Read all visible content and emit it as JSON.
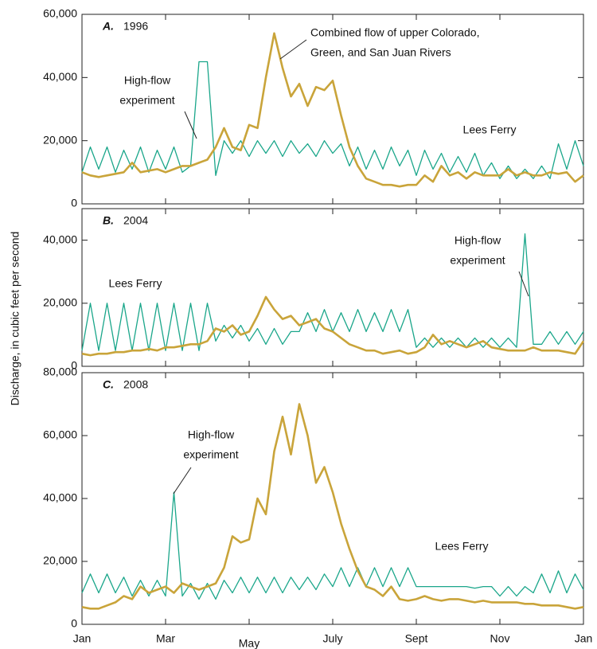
{
  "ylabel": "Discharge, in cubic feet per second",
  "chart_data": [
    {
      "type": "line",
      "panel": "A.",
      "title": "1996",
      "xlim": [
        0,
        12
      ],
      "xticks": [
        0,
        2,
        4,
        6,
        8,
        10,
        12
      ],
      "ylim": [
        0,
        60000
      ],
      "yticks": [
        0,
        {
          "value": 20000,
          "label": "20,000"
        },
        {
          "value": 40000,
          "label": "40,000"
        },
        {
          "value": 60000,
          "label": "60,000"
        }
      ],
      "annotations": [
        {
          "text": [
            "High-flow",
            "experiment"
          ]
        },
        {
          "text": [
            "Combined flow of upper Colorado,",
            "Green, and San Juan Rivers"
          ]
        },
        {
          "text": [
            "Lees Ferry"
          ]
        }
      ],
      "x": [
        0,
        0.2,
        0.4,
        0.6,
        0.8,
        1,
        1.2,
        1.4,
        1.6,
        1.8,
        2,
        2.2,
        2.4,
        2.6,
        2.8,
        3,
        3.2,
        3.4,
        3.6,
        3.8,
        4,
        4.2,
        4.4,
        4.6,
        4.8,
        5,
        5.2,
        5.4,
        5.6,
        5.8,
        6,
        6.2,
        6.4,
        6.6,
        6.8,
        7,
        7.2,
        7.4,
        7.6,
        7.8,
        8,
        8.2,
        8.4,
        8.6,
        8.8,
        9,
        9.2,
        9.4,
        9.6,
        9.8,
        10,
        10.2,
        10.4,
        10.6,
        10.8,
        11,
        11.2,
        11.4,
        11.6,
        11.8,
        12
      ],
      "series": [
        {
          "color": "#1aa68a",
          "values": [
            10000,
            18000,
            11000,
            18000,
            10000,
            17000,
            11000,
            18000,
            10000,
            17000,
            11000,
            18000,
            10000,
            12000,
            45000,
            45000,
            9000,
            20000,
            16000,
            20000,
            15000,
            20000,
            16000,
            20000,
            15000,
            20000,
            16000,
            19000,
            15000,
            20000,
            16000,
            19000,
            12000,
            18000,
            11000,
            17000,
            11000,
            18000,
            12000,
            17000,
            9000,
            17000,
            11000,
            16000,
            10000,
            15000,
            10000,
            16000,
            9000,
            13000,
            8000,
            12000,
            8000,
            11000,
            8000,
            12000,
            8000,
            19000,
            11000,
            20000,
            12000
          ]
        },
        {
          "color": "#c9a43a",
          "values": [
            10000,
            9000,
            8500,
            9000,
            9500,
            10000,
            13000,
            10000,
            10500,
            11000,
            10000,
            11000,
            12000,
            12000,
            13000,
            14000,
            18000,
            24000,
            18000,
            17000,
            25000,
            24000,
            40000,
            54000,
            43000,
            34000,
            38000,
            31000,
            37000,
            36000,
            39000,
            28000,
            18000,
            12000,
            8000,
            7000,
            6000,
            6000,
            5500,
            6000,
            6000,
            9000,
            7000,
            12000,
            9000,
            10000,
            8000,
            10000,
            9000,
            9000,
            9000,
            11000,
            9000,
            10000,
            9000,
            9000,
            10000,
            9500,
            10000,
            7000,
            9000
          ]
        }
      ]
    },
    {
      "type": "line",
      "panel": "B.",
      "title": "2004",
      "xlim": [
        0,
        12
      ],
      "xticks": [
        0,
        2,
        4,
        6,
        8,
        10,
        12
      ],
      "ylim": [
        0,
        50000
      ],
      "yticks": [
        0,
        {
          "value": 20000,
          "label": "20,000"
        },
        {
          "value": 40000,
          "label": "40,000"
        }
      ],
      "annotations": [
        {
          "text": [
            "Lees Ferry"
          ]
        },
        {
          "text": [
            "High-flow",
            "experiment"
          ]
        }
      ],
      "x": [
        0,
        0.2,
        0.4,
        0.6,
        0.8,
        1,
        1.2,
        1.4,
        1.6,
        1.8,
        2,
        2.2,
        2.4,
        2.6,
        2.8,
        3,
        3.2,
        3.4,
        3.6,
        3.8,
        4,
        4.2,
        4.4,
        4.6,
        4.8,
        5,
        5.2,
        5.4,
        5.6,
        5.8,
        6,
        6.2,
        6.4,
        6.6,
        6.8,
        7,
        7.2,
        7.4,
        7.6,
        7.8,
        8,
        8.2,
        8.4,
        8.6,
        8.8,
        9,
        9.2,
        9.4,
        9.6,
        9.8,
        10,
        10.2,
        10.4,
        10.6,
        10.8,
        11,
        11.2,
        11.4,
        11.6,
        11.8,
        12
      ],
      "series": [
        {
          "color": "#1aa68a",
          "values": [
            5000,
            20000,
            5000,
            20000,
            5000,
            20000,
            5000,
            20000,
            5000,
            20000,
            5000,
            20000,
            5000,
            20000,
            5000,
            20000,
            8000,
            13000,
            9000,
            13000,
            8000,
            12000,
            7000,
            12000,
            7000,
            11000,
            11000,
            17000,
            11000,
            18000,
            11000,
            17000,
            11000,
            18000,
            11000,
            17000,
            11000,
            18000,
            11000,
            18000,
            6000,
            9000,
            6000,
            9000,
            6000,
            9000,
            6000,
            9000,
            6000,
            9000,
            6000,
            9000,
            6000,
            42000,
            7000,
            7000,
            11000,
            7000,
            11000,
            7000,
            11000
          ]
        },
        {
          "color": "#c9a43a",
          "values": [
            4000,
            3500,
            4000,
            4000,
            4500,
            4500,
            5000,
            5000,
            5500,
            5000,
            6000,
            6000,
            6500,
            7000,
            7000,
            8000,
            12000,
            11000,
            13000,
            10000,
            11000,
            16000,
            22000,
            18000,
            15000,
            16000,
            13000,
            14000,
            15000,
            12000,
            11000,
            9000,
            7000,
            6000,
            5000,
            5000,
            4000,
            4500,
            5000,
            4000,
            4500,
            6000,
            10000,
            7000,
            8000,
            7000,
            6000,
            7000,
            8000,
            6000,
            5500,
            5000,
            5000,
            5000,
            6000,
            5000,
            5000,
            5000,
            4500,
            4000,
            8000
          ]
        }
      ]
    },
    {
      "type": "line",
      "panel": "C.",
      "title": "2008",
      "xlim": [
        0,
        12
      ],
      "xticks": [
        {
          "value": 0,
          "label": "Jan"
        },
        {
          "value": 2,
          "label": "Mar"
        },
        {
          "value": 4,
          "label": "May"
        },
        {
          "value": 6,
          "label": "July"
        },
        {
          "value": 8,
          "label": "Sept"
        },
        {
          "value": 10,
          "label": "Nov"
        },
        {
          "value": 12,
          "label": "Jan"
        }
      ],
      "ylim": [
        0,
        80000
      ],
      "yticks": [
        0,
        {
          "value": 20000,
          "label": "20,000"
        },
        {
          "value": 40000,
          "label": "40,000"
        },
        {
          "value": 60000,
          "label": "60,000"
        },
        {
          "value": 80000,
          "label": "80,000"
        }
      ],
      "annotations": [
        {
          "text": [
            "High-flow",
            "experiment"
          ]
        },
        {
          "text": [
            "Lees Ferry"
          ]
        }
      ],
      "x": [
        0,
        0.2,
        0.4,
        0.6,
        0.8,
        1,
        1.2,
        1.4,
        1.6,
        1.8,
        2,
        2.2,
        2.4,
        2.6,
        2.8,
        3,
        3.2,
        3.4,
        3.6,
        3.8,
        4,
        4.2,
        4.4,
        4.6,
        4.8,
        5,
        5.2,
        5.4,
        5.6,
        5.8,
        6,
        6.2,
        6.4,
        6.6,
        6.8,
        7,
        7.2,
        7.4,
        7.6,
        7.8,
        8,
        8.2,
        8.4,
        8.6,
        8.8,
        9,
        9.2,
        9.4,
        9.6,
        9.8,
        10,
        10.2,
        10.4,
        10.6,
        10.8,
        11,
        11.2,
        11.4,
        11.6,
        11.8,
        12
      ],
      "series": [
        {
          "color": "#1aa68a",
          "values": [
            10000,
            16000,
            10000,
            16000,
            10000,
            15000,
            9000,
            14000,
            9000,
            14000,
            9000,
            42000,
            9000,
            13000,
            8000,
            13000,
            8000,
            14000,
            10000,
            15000,
            10000,
            15000,
            10000,
            15000,
            10000,
            15000,
            11000,
            15000,
            11000,
            16000,
            12000,
            18000,
            12000,
            18000,
            12000,
            18000,
            12000,
            18000,
            12000,
            18000,
            12000,
            12000,
            12000,
            12000,
            12000,
            12000,
            12000,
            11500,
            12000,
            12000,
            9000,
            12000,
            9000,
            12000,
            10000,
            16000,
            10000,
            17000,
            10000,
            16000,
            11000
          ]
        },
        {
          "color": "#c9a43a",
          "values": [
            5500,
            5000,
            5000,
            6000,
            7000,
            9000,
            8000,
            12000,
            10000,
            11000,
            12000,
            10000,
            13000,
            12000,
            11000,
            12000,
            13000,
            18000,
            28000,
            26000,
            27000,
            40000,
            35000,
            55000,
            66000,
            54000,
            70000,
            60000,
            45000,
            50000,
            42000,
            32000,
            24000,
            17000,
            12000,
            11000,
            9000,
            12000,
            8000,
            7500,
            8000,
            9000,
            8000,
            7500,
            8000,
            8000,
            7500,
            7000,
            7500,
            7000,
            7000,
            7000,
            7000,
            6500,
            6500,
            6000,
            6000,
            6000,
            5500,
            5000,
            5500
          ]
        }
      ]
    }
  ]
}
